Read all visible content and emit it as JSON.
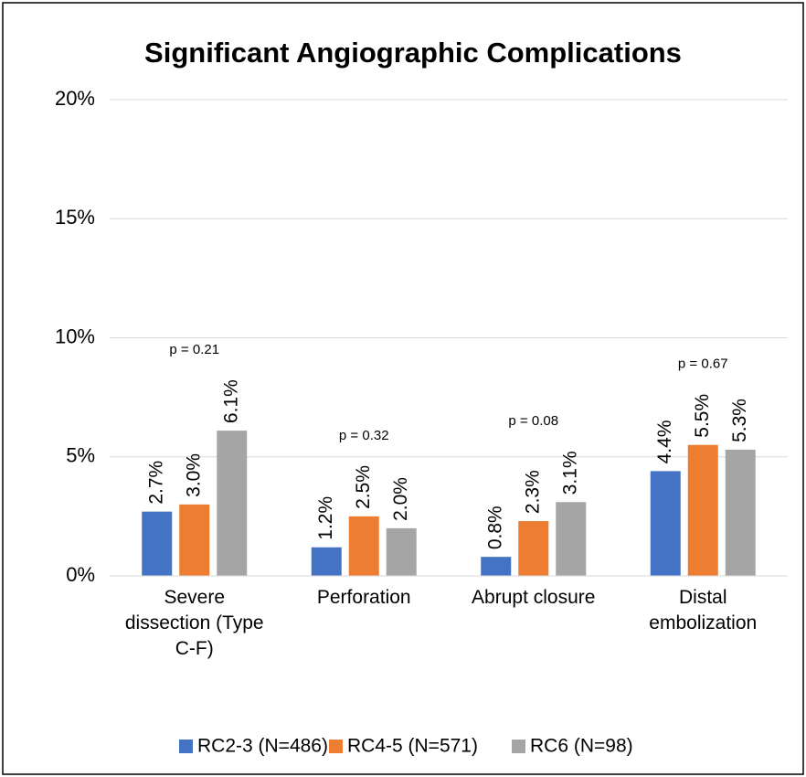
{
  "chart_data": {
    "type": "bar",
    "title": "Significant Angiographic Complications",
    "categories": [
      "Severe dissection (Type C-F)",
      "Perforation",
      "Abrupt closure",
      "Distal embolization"
    ],
    "series": [
      {
        "name": "RC2-3 (N=486)",
        "color": "#4472c4",
        "values": [
          2.7,
          1.2,
          0.8,
          4.4
        ],
        "value_labels": [
          "2.7%",
          "1.2%",
          "0.8%",
          "4.4%"
        ]
      },
      {
        "name": "RC4-5 (N=571)",
        "color": "#ed7d31",
        "values": [
          3.0,
          2.5,
          2.3,
          5.5
        ],
        "value_labels": [
          "3.0%",
          "2.5%",
          "2.3%",
          "5.5%"
        ]
      },
      {
        "name": "RC6 (N=98)",
        "color": "#a5a5a5",
        "values": [
          6.1,
          2.0,
          3.1,
          5.3
        ],
        "value_labels": [
          "6.1%",
          "2.0%",
          "3.1%",
          "5.3%"
        ]
      }
    ],
    "annotations": [
      "p = 0.21",
      "p = 0.32",
      "p = 0.08",
      "p = 0.67"
    ],
    "ylim": [
      0,
      20
    ],
    "yticks": [
      {
        "value": 0,
        "label": "0%"
      },
      {
        "value": 5,
        "label": "5%"
      },
      {
        "value": 10,
        "label": "10%"
      },
      {
        "value": 15,
        "label": "15%"
      },
      {
        "value": 20,
        "label": "20%"
      }
    ],
    "grid": true,
    "legend": "bottom"
  }
}
